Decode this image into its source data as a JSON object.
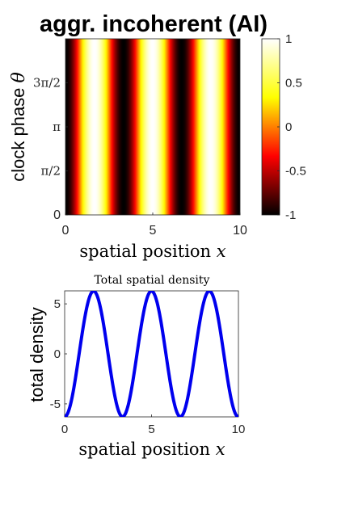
{
  "chart_data": [
    {
      "type": "heatmap",
      "title": "aggr. incoherent (AI)",
      "xlabel": "spatial position x",
      "xlabel_parts": [
        "spatial position ",
        "x"
      ],
      "ylabel": "clock phase θ",
      "ylabel_parts": [
        "clock phase ",
        "θ"
      ],
      "xlim": [
        0,
        10
      ],
      "ylim": [
        0,
        6.2832
      ],
      "x_ticks": [
        0,
        5,
        10
      ],
      "x_tick_labels": [
        "0",
        "5",
        "10"
      ],
      "y_ticks": [
        0,
        1.5708,
        3.1416,
        4.7124
      ],
      "y_tick_labels": [
        "0",
        "π/2",
        "π",
        "3π/2"
      ],
      "value_function": "-cos(2*pi*x/3.33)",
      "period": 3.33,
      "colormap": "hot",
      "colorbar": {
        "range": [
          -1,
          1
        ],
        "ticks": [
          -1,
          -0.5,
          0,
          0.5,
          1
        ],
        "tick_labels": [
          "-1",
          "-0.5",
          "0",
          "0.5",
          "1"
        ]
      }
    },
    {
      "type": "line",
      "title": "Total spatial density",
      "xlabel": "spatial position x",
      "xlabel_parts": [
        "spatial position ",
        "x"
      ],
      "ylabel": "total density",
      "xlim": [
        0,
        10
      ],
      "ylim": [
        -6.3,
        6.3
      ],
      "x_ticks": [
        0,
        5,
        10
      ],
      "x_tick_labels": [
        "0",
        "5",
        "10"
      ],
      "y_ticks": [
        -5,
        0,
        5
      ],
      "y_tick_labels": [
        "-5",
        "0",
        "5"
      ],
      "series": [
        {
          "color": "#0000ee",
          "amplitude": 6.28,
          "period": 3.33,
          "x": [
            0,
            0.5,
            1.0,
            1.5,
            2.0,
            2.5,
            3.0,
            3.5,
            4.0,
            4.5,
            5.0,
            5.5,
            6.0,
            6.5,
            7.0,
            7.5,
            8.0,
            8.5,
            9.0,
            9.5,
            10.0
          ],
          "y": [
            -6.28,
            -3.73,
            1.67,
            5.75,
            5.33,
            0.51,
            -4.68,
            -6.23,
            -2.79,
            2.78,
            6.23,
            4.7,
            -0.5,
            -5.32,
            -5.76,
            -1.69,
            3.72,
            6.28,
            3.73,
            -1.67,
            -5.75
          ]
        }
      ]
    }
  ]
}
